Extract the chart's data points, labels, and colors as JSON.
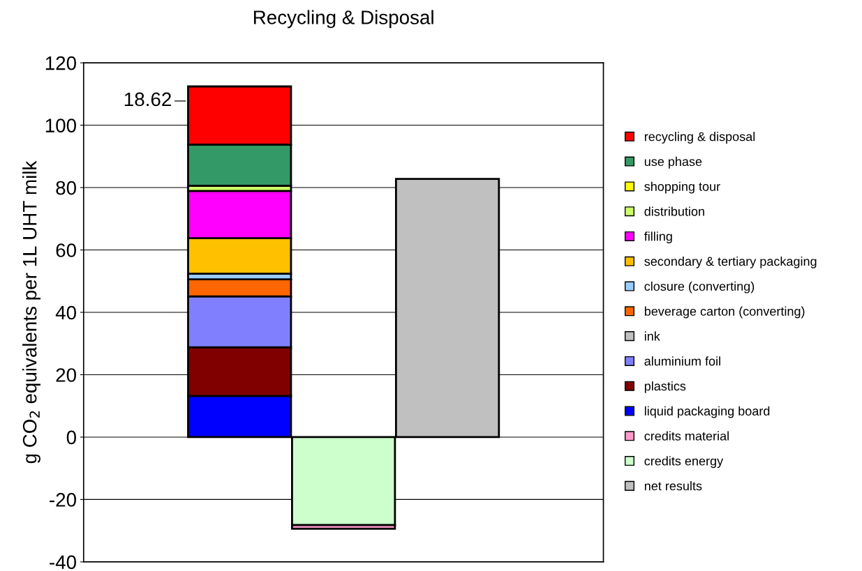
{
  "chart_data": {
    "type": "bar",
    "title": "Recycling & Disposal",
    "ylabel": "g CO$_{2}$ equivalents per 1L UHT milk",
    "categories": [
      null,
      null,
      null
    ],
    "stacked": true,
    "series": [
      {
        "name": "net results",
        "color": "#c0c0c0",
        "values": [
          null,
          null,
          82.8
        ]
      },
      {
        "name": "credits energy",
        "color": "#ccffcc",
        "values": [
          null,
          -28.2,
          null
        ]
      },
      {
        "name": "credits material",
        "color": "#ff99cc",
        "values": [
          null,
          -1.2,
          null
        ]
      },
      {
        "name": "liquid packaging board",
        "color": "#0000ff",
        "values": [
          13.2,
          null,
          null
        ]
      },
      {
        "name": "plastics",
        "color": "#800000",
        "values": [
          15.6,
          null,
          null
        ]
      },
      {
        "name": "aluminium foil",
        "color": "#8080ff",
        "values": [
          16.3,
          null,
          null
        ]
      },
      {
        "name": "ink",
        "color": "#c0c0c0",
        "values": [
          null,
          null,
          null
        ]
      },
      {
        "name": "beverage carton (converting)",
        "color": "#ff6600",
        "values": [
          5.5,
          null,
          null
        ]
      },
      {
        "name": "closure (converting)",
        "color": "#99ccff",
        "values": [
          1.8,
          null,
          null
        ]
      },
      {
        "name": "secondary & tertiary packaging",
        "color": "#ffc000",
        "values": [
          11.4,
          null,
          null
        ]
      },
      {
        "name": "filling",
        "color": "#ff00ff",
        "values": [
          15.1,
          null,
          null
        ]
      },
      {
        "name": "distribution",
        "color": "#ccff66",
        "values": [
          1.7,
          null,
          null
        ]
      },
      {
        "name": "shopping tour",
        "color": "#ffff00",
        "values": [
          0,
          null,
          null
        ]
      },
      {
        "name": "use phase",
        "color": "#339966",
        "values": [
          13.2,
          null,
          null
        ]
      },
      {
        "name": "recycling & disposal",
        "color": "#ff0000",
        "values": [
          18.62,
          null,
          null
        ],
        "value_labels": [
          "18.62",
          null,
          null
        ]
      }
    ],
    "ylim": [
      -40,
      120
    ],
    "yticks": [
      -40,
      -20,
      0,
      20,
      40,
      60,
      80,
      100,
      120
    ],
    "grid": "y",
    "legend": "right",
    "tick_labels": "y"
  }
}
